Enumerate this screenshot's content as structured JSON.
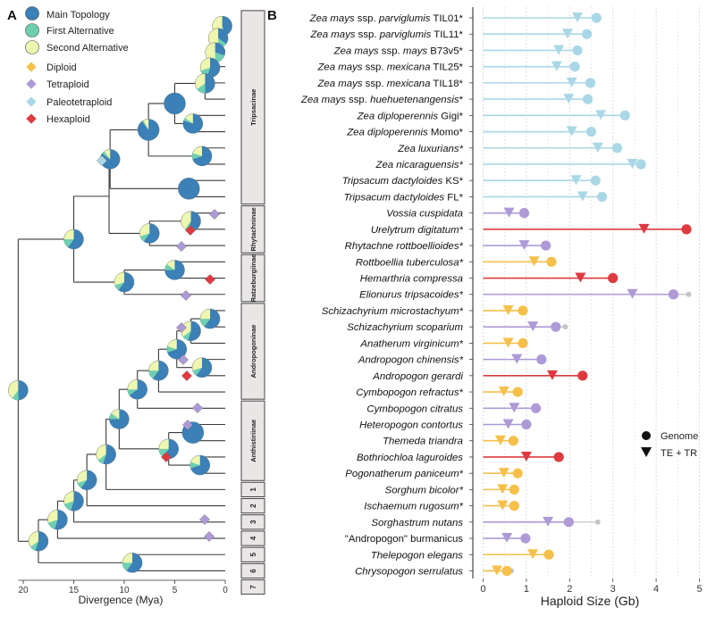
{
  "panel_a": {
    "label": "A",
    "legend": {
      "topology": [
        {
          "label": "Main Topology",
          "color": "#3b80b6"
        },
        {
          "label": "First Alternative",
          "color": "#6dcfb0"
        },
        {
          "label": "Second Alternative",
          "color": "#eef7b0"
        }
      ],
      "ploidy": [
        {
          "label": "Diploid",
          "color": "#f6c04a"
        },
        {
          "label": "Tetraploid",
          "color": "#ae9ad7"
        },
        {
          "label": "Paleotetraploid",
          "color": "#a9d7e6"
        },
        {
          "label": "Hexaploid",
          "color": "#de3a40"
        }
      ]
    },
    "xaxis": {
      "label": "Divergence (Mya)",
      "ticks": [
        "20",
        "15",
        "10",
        "5",
        "0"
      ]
    },
    "clades": [
      {
        "label": "Tripsacinae"
      },
      {
        "label": "Rhytachninae"
      },
      {
        "label": "Ratzeburgiinae"
      },
      {
        "label": "Andropogoninae"
      },
      {
        "label": "Anthistiriinae"
      },
      {
        "label": "1"
      },
      {
        "label": "2"
      },
      {
        "label": "3"
      },
      {
        "label": "4"
      },
      {
        "label": "5"
      },
      {
        "label": "6"
      },
      {
        "label": "7"
      }
    ]
  },
  "chart_data": {
    "type": "scatter",
    "panel_label": "B",
    "xlabel": "Haploid Size (Gb)",
    "xlim": [
      0,
      5
    ],
    "xticks": [
      "0",
      "1",
      "2",
      "3",
      "4",
      "5"
    ],
    "legend": {
      "genome": "Genome",
      "te": "TE + TR"
    },
    "colors": {
      "diploid": "#f6c04a",
      "tetraploid": "#ae9ad7",
      "paleotetraploid": "#a9d7e6",
      "hexaploid": "#de3a40",
      "other": "#c4c4c4"
    },
    "species": [
      {
        "parts": [
          {
            "t": "Zea mays",
            "i": true
          },
          {
            "t": " ssp. ",
            "i": false
          },
          {
            "t": "parviglumis",
            "i": true
          },
          {
            "t": " TIL01*",
            "i": false
          }
        ],
        "ploidy": "paleotetraploid",
        "genome": 2.62,
        "te": 2.18
      },
      {
        "parts": [
          {
            "t": "Zea mays",
            "i": true
          },
          {
            "t": " ssp. ",
            "i": false
          },
          {
            "t": "parviglumis",
            "i": true
          },
          {
            "t": " TIL11*",
            "i": false
          }
        ],
        "ploidy": "paleotetraploid",
        "genome": 2.4,
        "te": 1.95
      },
      {
        "parts": [
          {
            "t": "Zea mays",
            "i": true
          },
          {
            "t": " ssp. ",
            "i": false
          },
          {
            "t": "mays",
            "i": true
          },
          {
            "t": " B73v5*",
            "i": false
          }
        ],
        "ploidy": "paleotetraploid",
        "genome": 2.18,
        "te": 1.75
      },
      {
        "parts": [
          {
            "t": "Zea mays",
            "i": true
          },
          {
            "t": " ssp. ",
            "i": false
          },
          {
            "t": "mexicana",
            "i": true
          },
          {
            "t": " TIL25*",
            "i": false
          }
        ],
        "ploidy": "paleotetraploid",
        "genome": 2.12,
        "te": 1.7
      },
      {
        "parts": [
          {
            "t": "Zea mays",
            "i": true
          },
          {
            "t": " ssp. ",
            "i": false
          },
          {
            "t": "mexicana",
            "i": true
          },
          {
            "t": " TIL18*",
            "i": false
          }
        ],
        "ploidy": "paleotetraploid",
        "genome": 2.48,
        "te": 2.05
      },
      {
        "parts": [
          {
            "t": "Zea mays",
            "i": true
          },
          {
            "t": " ssp. ",
            "i": false
          },
          {
            "t": "huehuetenangensis",
            "i": true
          },
          {
            "t": "*",
            "i": false
          }
        ],
        "ploidy": "paleotetraploid",
        "genome": 2.42,
        "te": 1.98
      },
      {
        "parts": [
          {
            "t": "Zea diploperennis",
            "i": true
          },
          {
            "t": " Gigi*",
            "i": false
          }
        ],
        "ploidy": "paleotetraploid",
        "genome": 3.28,
        "te": 2.72
      },
      {
        "parts": [
          {
            "t": "Zea diploperennis",
            "i": true
          },
          {
            "t": " Momo*",
            "i": false
          }
        ],
        "ploidy": "paleotetraploid",
        "genome": 2.5,
        "te": 2.05
      },
      {
        "parts": [
          {
            "t": "Zea luxurians*",
            "i": true
          }
        ],
        "ploidy": "paleotetraploid",
        "genome": 3.1,
        "te": 2.65
      },
      {
        "parts": [
          {
            "t": "Zea nicaraguensis*",
            "i": true
          }
        ],
        "ploidy": "paleotetraploid",
        "genome": 3.65,
        "te": 3.45
      },
      {
        "parts": [
          {
            "t": "Tripsacum dactyloides",
            "i": true
          },
          {
            "t": " KS*",
            "i": false
          }
        ],
        "ploidy": "paleotetraploid",
        "genome": 2.6,
        "te": 2.15
      },
      {
        "parts": [
          {
            "t": "Tripsacum dactyloides",
            "i": true
          },
          {
            "t": " FL*",
            "i": false
          }
        ],
        "ploidy": "paleotetraploid",
        "genome": 2.75,
        "te": 2.3
      },
      {
        "parts": [
          {
            "t": "Vossia cuspidata",
            "i": true
          }
        ],
        "ploidy": "tetraploid",
        "genome": 0.95,
        "te": 0.6
      },
      {
        "parts": [
          {
            "t": "Urelytrum digitatum*",
            "i": true
          }
        ],
        "ploidy": "hexaploid",
        "genome": 4.7,
        "te": 3.72
      },
      {
        "parts": [
          {
            "t": "Rhytachne rottboellioides*",
            "i": true
          }
        ],
        "ploidy": "tetraploid",
        "genome": 1.45,
        "te": 0.95
      },
      {
        "parts": [
          {
            "t": "Rottboellia tuberculosa*",
            "i": true
          }
        ],
        "ploidy": "diploid",
        "genome": 1.58,
        "te": 1.18
      },
      {
        "parts": [
          {
            "t": "Hemarthria compressa",
            "i": true
          }
        ],
        "ploidy": "hexaploid",
        "genome": 3.0,
        "te": 2.25
      },
      {
        "parts": [
          {
            "t": "Elionurus tripsacoides*",
            "i": true
          }
        ],
        "ploidy": "tetraploid",
        "genome": 4.4,
        "te": 3.45,
        "extra": 4.75
      },
      {
        "parts": [
          {
            "t": "Schizachyrium microstachyum*",
            "i": true
          }
        ],
        "ploidy": "diploid",
        "genome": 0.92,
        "te": 0.58
      },
      {
        "parts": [
          {
            "t": "Schizachyrium scoparium",
            "i": true
          }
        ],
        "ploidy": "tetraploid",
        "genome": 1.68,
        "te": 1.15,
        "extra": 1.9
      },
      {
        "parts": [
          {
            "t": "Anatherum virginicum*",
            "i": true
          }
        ],
        "ploidy": "diploid",
        "genome": 0.92,
        "te": 0.58
      },
      {
        "parts": [
          {
            "t": "Andropogon chinensis*",
            "i": true
          }
        ],
        "ploidy": "tetraploid",
        "genome": 1.35,
        "te": 0.78
      },
      {
        "parts": [
          {
            "t": "Andropogon gerardi",
            "i": true
          }
        ],
        "ploidy": "hexaploid",
        "genome": 2.3,
        "te": 1.6
      },
      {
        "parts": [
          {
            "t": "Cymbopogon refractus*",
            "i": true
          }
        ],
        "ploidy": "diploid",
        "genome": 0.8,
        "te": 0.48
      },
      {
        "parts": [
          {
            "t": "Cymbopogon citratus",
            "i": true
          }
        ],
        "ploidy": "tetraploid",
        "genome": 1.22,
        "te": 0.72
      },
      {
        "parts": [
          {
            "t": "Heteropogon contortus",
            "i": true
          }
        ],
        "ploidy": "tetraploid",
        "genome": 1.0,
        "te": 0.58
      },
      {
        "parts": [
          {
            "t": "Themeda triandra",
            "i": true
          }
        ],
        "ploidy": "diploid",
        "genome": 0.7,
        "te": 0.4
      },
      {
        "parts": [
          {
            "t": "Bothriochloa laguroides",
            "i": true
          }
        ],
        "ploidy": "hexaploid",
        "genome": 1.75,
        "te": 1.0
      },
      {
        "parts": [
          {
            "t": "Pogonatherum paniceum*",
            "i": true
          }
        ],
        "ploidy": "diploid",
        "genome": 0.8,
        "te": 0.48
      },
      {
        "parts": [
          {
            "t": "Sorghum bicolor*",
            "i": true
          }
        ],
        "ploidy": "diploid",
        "genome": 0.72,
        "te": 0.45
      },
      {
        "parts": [
          {
            "t": "Ischaemum rugosum*",
            "i": true
          }
        ],
        "ploidy": "diploid",
        "genome": 0.72,
        "te": 0.45
      },
      {
        "parts": [
          {
            "t": "Sorghastrum nutans",
            "i": true
          }
        ],
        "ploidy": "tetraploid",
        "genome": 1.98,
        "te": 1.5,
        "extra": 2.65
      },
      {
        "parts": [
          {
            "t": "\"Andropogon\" burmanicus",
            "i": false
          }
        ],
        "ploidy": "tetraploid",
        "genome": 0.98,
        "te": 0.55
      },
      {
        "parts": [
          {
            "t": "Thelepogon elegans",
            "i": true
          }
        ],
        "ploidy": "diploid",
        "genome": 1.52,
        "te": 1.15
      },
      {
        "parts": [
          {
            "t": "Chrysopogon serrulatus",
            "i": true
          }
        ],
        "ploidy": "diploid",
        "genome": 0.55,
        "te": 0.32,
        "extra": 0.65
      }
    ]
  }
}
